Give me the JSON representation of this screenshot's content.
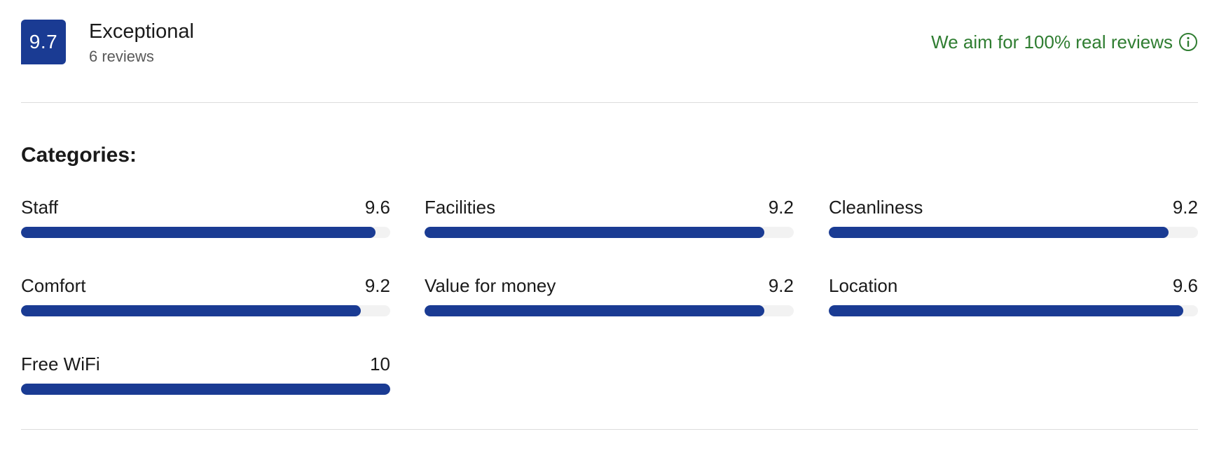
{
  "header": {
    "score": "9.7",
    "rating_label": "Exceptional",
    "review_count": "6 reviews",
    "real_reviews_text": "We aim for 100% real reviews",
    "info_icon": "info-circle-icon"
  },
  "categories": {
    "title": "Categories:",
    "items": [
      {
        "label": "Staff",
        "score": "9.6",
        "fraction": 0.96
      },
      {
        "label": "Facilities",
        "score": "9.2",
        "fraction": 0.92
      },
      {
        "label": "Cleanliness",
        "score": "9.2",
        "fraction": 0.92
      },
      {
        "label": "Comfort",
        "score": "9.2",
        "fraction": 0.92
      },
      {
        "label": "Value for money",
        "score": "9.2",
        "fraction": 0.92
      },
      {
        "label": "Location",
        "score": "9.6",
        "fraction": 0.96
      },
      {
        "label": "Free WiFi",
        "score": "10",
        "fraction": 1.0
      }
    ]
  },
  "colors": {
    "brand": "#1a3b93",
    "positive_text": "#2f7d31",
    "track": "#f2f2f2",
    "divider": "#dcdcdc"
  }
}
